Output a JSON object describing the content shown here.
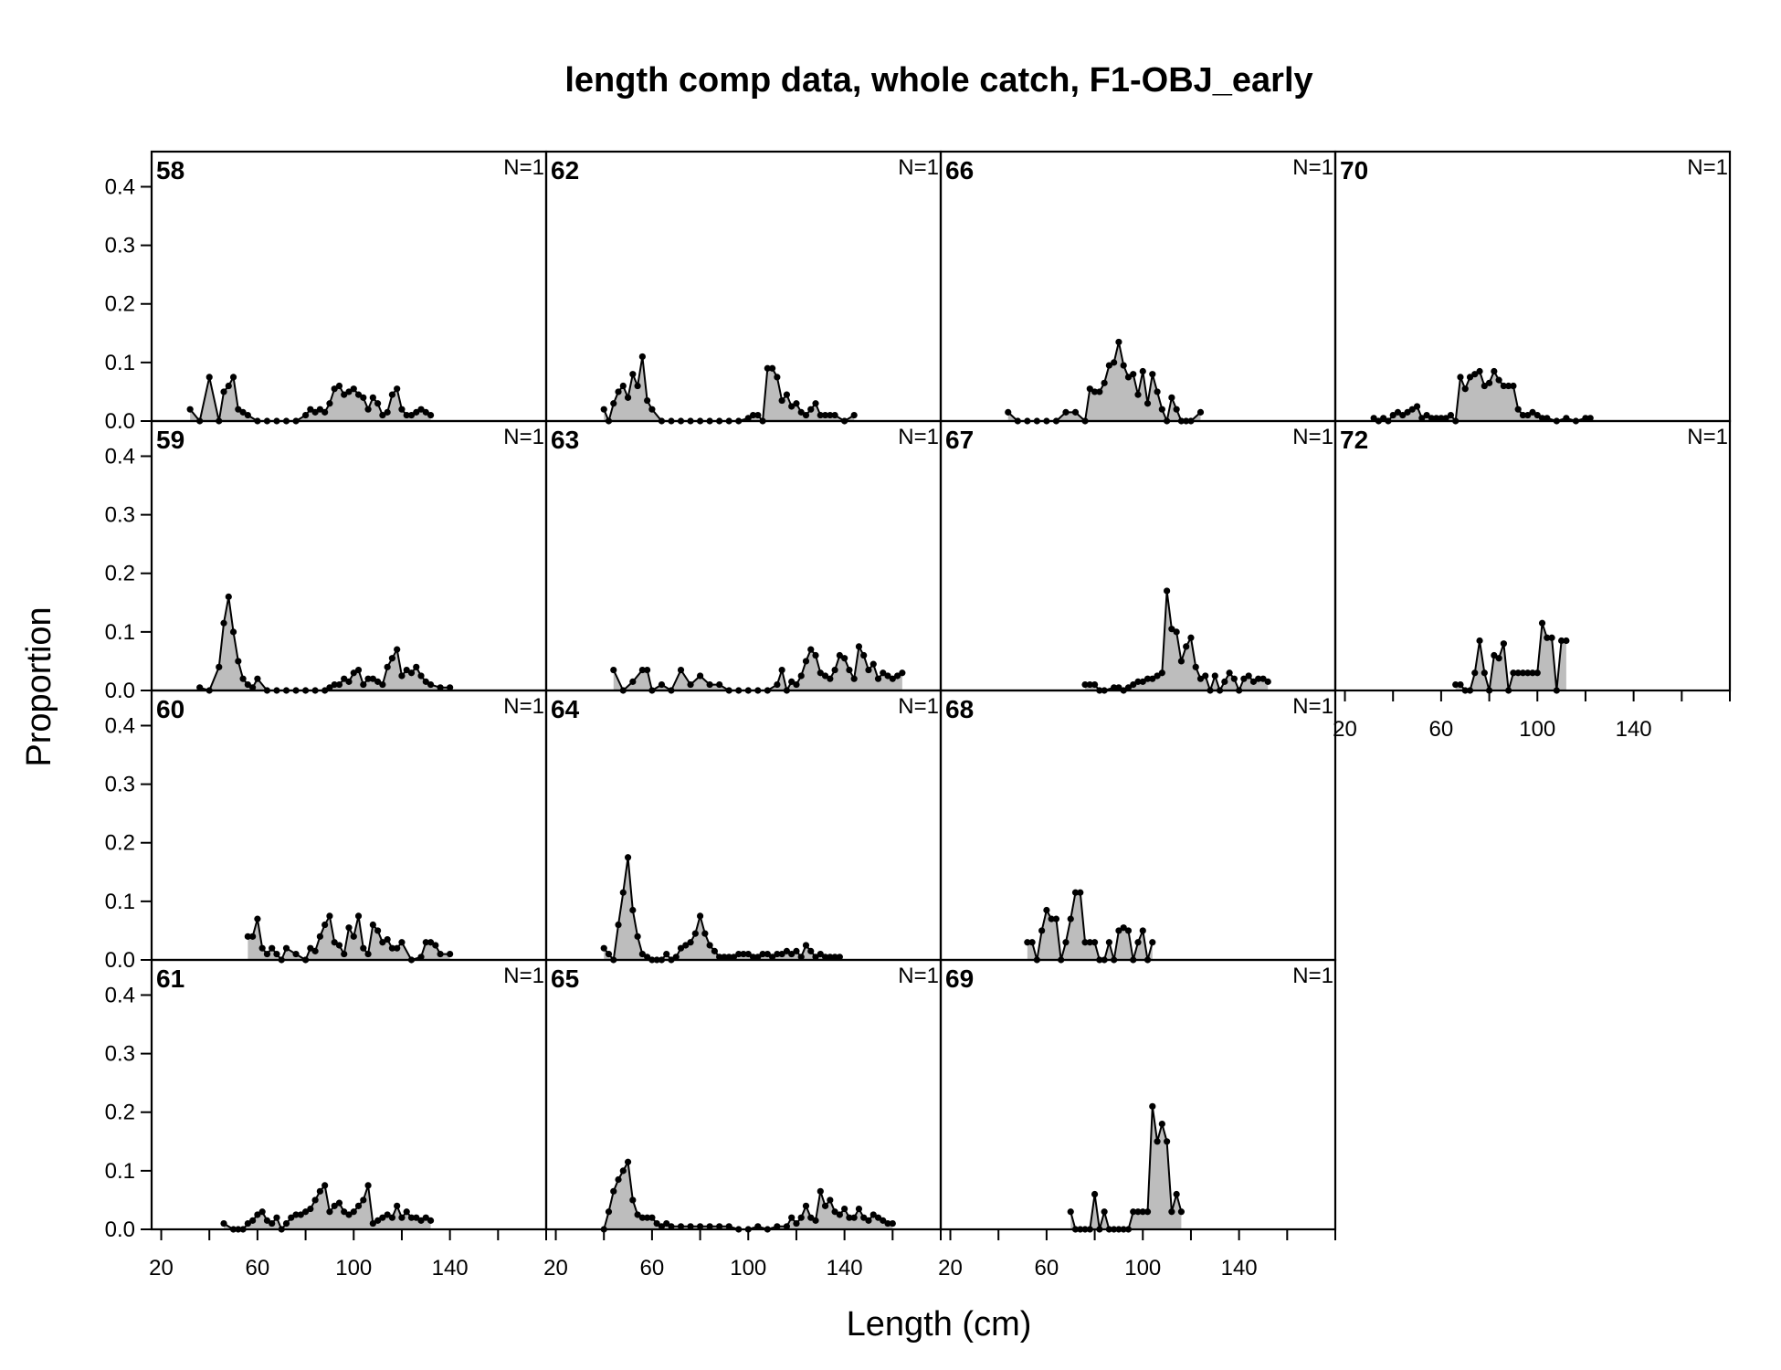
{
  "chart_data": {
    "type": "area",
    "title": "length comp data, whole catch, F1-OBJ_early",
    "xlabel": "Length (cm)",
    "ylabel": "Proportion",
    "xlim": [
      16,
      180
    ],
    "ylim": [
      0,
      0.46
    ],
    "x_ticks": [
      20,
      40,
      60,
      80,
      100,
      120,
      140,
      160,
      180
    ],
    "x_tick_labels": [
      "20",
      "60",
      "100",
      "140"
    ],
    "y_ticks": [
      "0.0",
      "0.1",
      "0.2",
      "0.3",
      "0.4"
    ],
    "panels": [
      {
        "year": "58",
        "n_label": "N=1",
        "col": 0,
        "row": 0,
        "x": [
          32,
          36,
          40,
          44,
          46,
          48,
          50,
          52,
          54,
          56,
          60,
          64,
          68,
          72,
          76,
          80,
          82,
          84,
          86,
          88,
          90,
          92,
          94,
          96,
          98,
          100,
          102,
          104,
          106,
          108,
          110,
          112,
          114,
          116,
          118,
          120,
          122,
          124,
          126,
          128,
          130,
          132
        ],
        "y": [
          0.02,
          0.0,
          0.075,
          0.0,
          0.05,
          0.06,
          0.075,
          0.02,
          0.015,
          0.01,
          0.0,
          0.0,
          0.0,
          0.0,
          0.0,
          0.01,
          0.02,
          0.015,
          0.02,
          0.015,
          0.03,
          0.055,
          0.06,
          0.045,
          0.05,
          0.055,
          0.045,
          0.04,
          0.02,
          0.04,
          0.03,
          0.01,
          0.015,
          0.045,
          0.055,
          0.02,
          0.01,
          0.01,
          0.015,
          0.02,
          0.015,
          0.01
        ]
      },
      {
        "year": "59",
        "n_label": "N=1",
        "col": 0,
        "row": 1,
        "x": [
          36,
          40,
          44,
          46,
          48,
          50,
          52,
          54,
          56,
          58,
          60,
          64,
          68,
          72,
          76,
          80,
          84,
          88,
          90,
          92,
          94,
          96,
          98,
          100,
          102,
          104,
          106,
          108,
          110,
          112,
          114,
          116,
          118,
          120,
          122,
          124,
          126,
          128,
          130,
          132,
          136,
          140
        ],
        "y": [
          0.005,
          0.0,
          0.04,
          0.115,
          0.16,
          0.1,
          0.05,
          0.02,
          0.01,
          0.005,
          0.02,
          0.0,
          0.0,
          0.0,
          0.0,
          0.0,
          0.0,
          0.0,
          0.005,
          0.01,
          0.01,
          0.02,
          0.015,
          0.03,
          0.035,
          0.01,
          0.02,
          0.02,
          0.015,
          0.01,
          0.04,
          0.055,
          0.07,
          0.025,
          0.035,
          0.03,
          0.04,
          0.025,
          0.015,
          0.01,
          0.005,
          0.005
        ]
      },
      {
        "year": "60",
        "n_label": "N=1",
        "col": 0,
        "row": 2,
        "x": [
          56,
          58,
          60,
          62,
          64,
          66,
          68,
          70,
          72,
          76,
          80,
          82,
          84,
          86,
          88,
          90,
          92,
          94,
          96,
          98,
          100,
          102,
          104,
          106,
          108,
          110,
          112,
          114,
          116,
          118,
          120,
          124,
          128,
          130,
          132,
          134,
          136,
          140
        ],
        "y": [
          0.04,
          0.04,
          0.07,
          0.02,
          0.01,
          0.02,
          0.01,
          0.0,
          0.02,
          0.01,
          0.0,
          0.02,
          0.015,
          0.04,
          0.06,
          0.075,
          0.03,
          0.025,
          0.01,
          0.055,
          0.04,
          0.075,
          0.02,
          0.01,
          0.06,
          0.05,
          0.03,
          0.035,
          0.02,
          0.02,
          0.03,
          0.0,
          0.005,
          0.03,
          0.03,
          0.025,
          0.01,
          0.01
        ]
      },
      {
        "year": "61",
        "n_label": "N=1",
        "col": 0,
        "row": 3,
        "x": [
          46,
          50,
          52,
          54,
          56,
          58,
          60,
          62,
          64,
          66,
          68,
          70,
          72,
          74,
          76,
          78,
          80,
          82,
          84,
          86,
          88,
          90,
          92,
          94,
          96,
          98,
          100,
          102,
          104,
          106,
          108,
          110,
          112,
          114,
          116,
          118,
          120,
          122,
          124,
          126,
          128,
          130,
          132
        ],
        "y": [
          0.01,
          0.0,
          0.0,
          0.0,
          0.01,
          0.015,
          0.025,
          0.03,
          0.015,
          0.01,
          0.02,
          0.0,
          0.01,
          0.02,
          0.025,
          0.025,
          0.03,
          0.035,
          0.05,
          0.065,
          0.075,
          0.03,
          0.04,
          0.045,
          0.03,
          0.025,
          0.03,
          0.04,
          0.05,
          0.075,
          0.01,
          0.015,
          0.02,
          0.025,
          0.02,
          0.04,
          0.02,
          0.03,
          0.02,
          0.02,
          0.015,
          0.02,
          0.015
        ]
      },
      {
        "year": "62",
        "n_label": "N=1",
        "col": 1,
        "row": 0,
        "x": [
          40,
          42,
          44,
          46,
          48,
          50,
          52,
          54,
          56,
          58,
          60,
          64,
          68,
          72,
          76,
          80,
          84,
          88,
          92,
          96,
          100,
          102,
          104,
          106,
          108,
          110,
          112,
          114,
          116,
          118,
          120,
          122,
          124,
          126,
          128,
          130,
          132,
          134,
          136,
          140,
          144
        ],
        "y": [
          0.02,
          0.0,
          0.03,
          0.05,
          0.06,
          0.04,
          0.08,
          0.06,
          0.11,
          0.035,
          0.02,
          0.0,
          0.0,
          0.0,
          0.0,
          0.0,
          0.0,
          0.0,
          0.0,
          0.0,
          0.005,
          0.01,
          0.01,
          0.0,
          0.09,
          0.09,
          0.075,
          0.035,
          0.045,
          0.025,
          0.03,
          0.015,
          0.01,
          0.02,
          0.03,
          0.01,
          0.01,
          0.01,
          0.01,
          0.0,
          0.01
        ]
      },
      {
        "year": "63",
        "n_label": "N=1",
        "col": 1,
        "row": 1,
        "x": [
          44,
          48,
          52,
          56,
          58,
          60,
          64,
          68,
          72,
          76,
          80,
          84,
          88,
          92,
          96,
          100,
          104,
          108,
          112,
          114,
          116,
          118,
          120,
          122,
          124,
          126,
          128,
          130,
          132,
          134,
          136,
          138,
          140,
          142,
          144,
          146,
          148,
          150,
          152,
          154,
          156,
          158,
          160,
          162,
          164
        ],
        "y": [
          0.035,
          0.0,
          0.015,
          0.035,
          0.035,
          0.0,
          0.01,
          0.0,
          0.035,
          0.01,
          0.025,
          0.01,
          0.01,
          0.0,
          0.0,
          0.0,
          0.0,
          0.0,
          0.01,
          0.035,
          0.0,
          0.015,
          0.01,
          0.025,
          0.05,
          0.07,
          0.06,
          0.03,
          0.025,
          0.02,
          0.035,
          0.06,
          0.055,
          0.035,
          0.02,
          0.075,
          0.06,
          0.035,
          0.045,
          0.02,
          0.03,
          0.025,
          0.02,
          0.025,
          0.03
        ]
      },
      {
        "year": "64",
        "n_label": "N=1",
        "col": 1,
        "row": 2,
        "x": [
          40,
          42,
          44,
          46,
          48,
          50,
          52,
          54,
          56,
          58,
          60,
          62,
          64,
          66,
          68,
          70,
          72,
          74,
          76,
          78,
          80,
          82,
          84,
          86,
          88,
          90,
          92,
          94,
          96,
          98,
          100,
          102,
          104,
          106,
          108,
          110,
          112,
          114,
          116,
          118,
          120,
          122,
          124,
          126,
          128,
          130,
          132,
          134,
          136,
          138
        ],
        "y": [
          0.02,
          0.01,
          0.0,
          0.06,
          0.115,
          0.175,
          0.085,
          0.04,
          0.01,
          0.005,
          0.0,
          0.0,
          0.0,
          0.01,
          0.0,
          0.005,
          0.02,
          0.025,
          0.03,
          0.045,
          0.075,
          0.045,
          0.025,
          0.015,
          0.005,
          0.005,
          0.005,
          0.005,
          0.01,
          0.01,
          0.01,
          0.005,
          0.005,
          0.01,
          0.01,
          0.005,
          0.01,
          0.01,
          0.015,
          0.01,
          0.015,
          0.005,
          0.025,
          0.015,
          0.005,
          0.01,
          0.005,
          0.005,
          0.005,
          0.005
        ]
      },
      {
        "year": "65",
        "n_label": "N=1",
        "col": 1,
        "row": 3,
        "x": [
          40,
          42,
          44,
          46,
          48,
          50,
          52,
          54,
          56,
          58,
          60,
          62,
          64,
          66,
          68,
          72,
          76,
          80,
          84,
          88,
          92,
          96,
          100,
          104,
          108,
          112,
          116,
          118,
          120,
          122,
          124,
          126,
          128,
          130,
          132,
          134,
          136,
          138,
          140,
          142,
          144,
          146,
          148,
          150,
          152,
          154,
          156,
          158,
          160
        ],
        "y": [
          0.0,
          0.03,
          0.065,
          0.085,
          0.1,
          0.115,
          0.05,
          0.025,
          0.02,
          0.02,
          0.02,
          0.01,
          0.005,
          0.01,
          0.005,
          0.005,
          0.005,
          0.005,
          0.005,
          0.005,
          0.005,
          0.0,
          0.0,
          0.005,
          0.0,
          0.005,
          0.005,
          0.02,
          0.01,
          0.02,
          0.04,
          0.02,
          0.015,
          0.065,
          0.04,
          0.05,
          0.03,
          0.025,
          0.035,
          0.02,
          0.02,
          0.035,
          0.02,
          0.015,
          0.025,
          0.02,
          0.015,
          0.01,
          0.01
        ]
      },
      {
        "year": "66",
        "n_label": "N=1",
        "col": 2,
        "row": 0,
        "x": [
          44,
          48,
          52,
          56,
          60,
          64,
          68,
          72,
          76,
          78,
          80,
          82,
          84,
          86,
          88,
          90,
          92,
          94,
          96,
          98,
          100,
          102,
          104,
          106,
          108,
          110,
          112,
          114,
          116,
          118,
          120,
          124
        ],
        "y": [
          0.015,
          0.0,
          0.0,
          0.0,
          0.0,
          0.0,
          0.015,
          0.015,
          0.0,
          0.055,
          0.05,
          0.05,
          0.065,
          0.095,
          0.1,
          0.135,
          0.095,
          0.075,
          0.08,
          0.045,
          0.085,
          0.03,
          0.08,
          0.05,
          0.02,
          0.0,
          0.04,
          0.02,
          0.0,
          0.0,
          0.0,
          0.015
        ]
      },
      {
        "year": "67",
        "n_label": "N=1",
        "col": 2,
        "row": 1,
        "x": [
          76,
          78,
          80,
          82,
          84,
          88,
          90,
          92,
          94,
          96,
          98,
          100,
          102,
          104,
          106,
          108,
          110,
          112,
          114,
          116,
          118,
          120,
          122,
          124,
          126,
          128,
          130,
          132,
          134,
          136,
          138,
          140,
          142,
          144,
          146,
          148,
          150,
          152
        ],
        "y": [
          0.01,
          0.01,
          0.01,
          0.0,
          0.0,
          0.005,
          0.005,
          0.0,
          0.005,
          0.01,
          0.015,
          0.015,
          0.02,
          0.02,
          0.025,
          0.03,
          0.17,
          0.105,
          0.1,
          0.05,
          0.075,
          0.09,
          0.04,
          0.02,
          0.025,
          0.0,
          0.025,
          0.0,
          0.015,
          0.03,
          0.02,
          0.0,
          0.02,
          0.025,
          0.015,
          0.02,
          0.02,
          0.015
        ]
      },
      {
        "year": "68",
        "n_label": "N=1",
        "col": 2,
        "row": 2,
        "x": [
          52,
          54,
          56,
          58,
          60,
          62,
          64,
          66,
          68,
          70,
          72,
          74,
          76,
          78,
          80,
          82,
          84,
          86,
          88,
          90,
          92,
          94,
          96,
          98,
          100,
          102,
          104
        ],
        "y": [
          0.03,
          0.03,
          0.0,
          0.05,
          0.085,
          0.07,
          0.07,
          0.0,
          0.03,
          0.07,
          0.115,
          0.115,
          0.03,
          0.03,
          0.03,
          0.0,
          0.0,
          0.03,
          0.0,
          0.05,
          0.055,
          0.05,
          0.0,
          0.03,
          0.05,
          0.0,
          0.03
        ]
      },
      {
        "year": "69",
        "n_label": "N=1",
        "col": 2,
        "row": 3,
        "x": [
          70,
          72,
          74,
          76,
          78,
          80,
          82,
          84,
          86,
          88,
          90,
          92,
          94,
          96,
          98,
          100,
          102,
          104,
          106,
          108,
          110,
          112,
          114,
          116
        ],
        "y": [
          0.03,
          0.0,
          0.0,
          0.0,
          0.0,
          0.06,
          0.0,
          0.03,
          0.0,
          0.0,
          0.0,
          0.0,
          0.0,
          0.03,
          0.03,
          0.03,
          0.03,
          0.21,
          0.15,
          0.18,
          0.15,
          0.03,
          0.06,
          0.03
        ]
      },
      {
        "year": "70",
        "n_label": "N=1",
        "col": 3,
        "row": 0,
        "x": [
          32,
          34,
          36,
          38,
          40,
          42,
          44,
          46,
          48,
          50,
          52,
          54,
          56,
          58,
          60,
          62,
          64,
          66,
          68,
          70,
          72,
          74,
          76,
          78,
          80,
          82,
          84,
          86,
          88,
          90,
          92,
          94,
          96,
          98,
          100,
          102,
          104,
          108,
          112,
          116,
          120,
          122
        ],
        "y": [
          0.005,
          0.0,
          0.005,
          0.0,
          0.01,
          0.015,
          0.01,
          0.015,
          0.02,
          0.025,
          0.005,
          0.01,
          0.005,
          0.005,
          0.005,
          0.005,
          0.01,
          0.0,
          0.075,
          0.055,
          0.075,
          0.08,
          0.085,
          0.06,
          0.065,
          0.085,
          0.07,
          0.06,
          0.06,
          0.06,
          0.02,
          0.01,
          0.01,
          0.015,
          0.01,
          0.005,
          0.005,
          0.0,
          0.005,
          0.0,
          0.005,
          0.005
        ]
      },
      {
        "year": "72",
        "n_label": "N=1",
        "col": 3,
        "row": 1,
        "x": [
          66,
          68,
          70,
          72,
          74,
          76,
          78,
          80,
          82,
          84,
          86,
          88,
          90,
          92,
          94,
          96,
          98,
          100,
          102,
          104,
          106,
          108,
          110,
          112
        ],
        "y": [
          0.01,
          0.01,
          0.0,
          0.0,
          0.03,
          0.085,
          0.03,
          0.0,
          0.06,
          0.055,
          0.08,
          0.0,
          0.03,
          0.03,
          0.03,
          0.03,
          0.03,
          0.03,
          0.115,
          0.09,
          0.09,
          0.0,
          0.085,
          0.085
        ]
      }
    ]
  }
}
